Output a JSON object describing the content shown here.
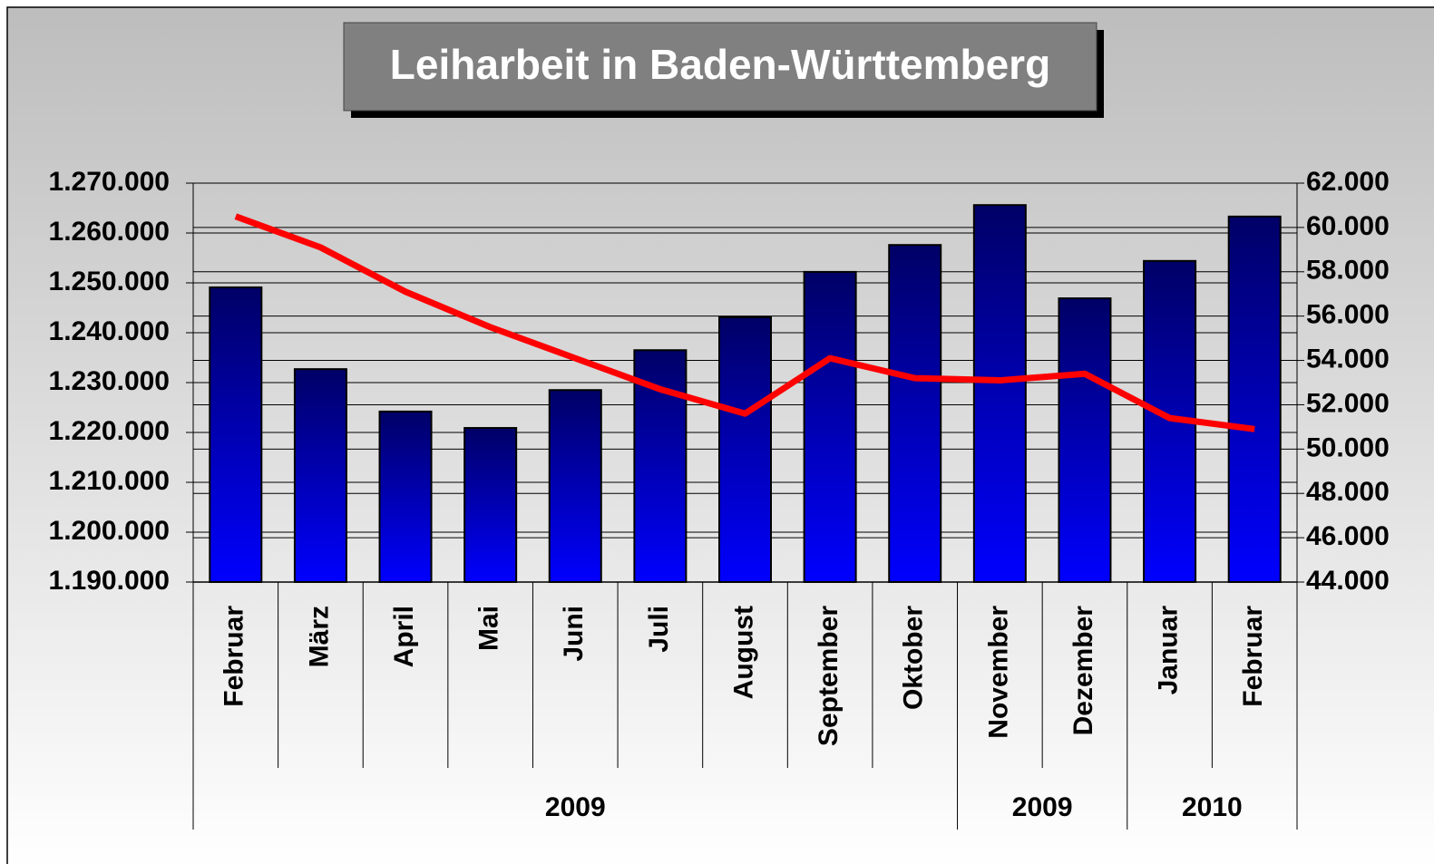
{
  "chart_data": {
    "type": "bar",
    "title": "Leiharbeit in Baden-Württemberg",
    "categories": [
      "Februar",
      "März",
      "April",
      "Mai",
      "Juni",
      "Juli",
      "August",
      "September",
      "Oktober",
      "November",
      "Dezember",
      "Januar",
      "Februar"
    ],
    "x_groups": [
      {
        "label": "2009",
        "count": 9
      },
      {
        "label": "2009",
        "count": 2
      },
      {
        "label": "2010",
        "count": 2
      }
    ],
    "series": [
      {
        "type": "bar",
        "color": "#0000ff",
        "values": [
          1249100,
          1232700,
          1224200,
          1220900,
          1228500,
          1236500,
          1243100,
          1252200,
          1257600,
          1265600,
          1246900,
          1254400,
          1263300
        ]
      },
      {
        "type": "line",
        "axis": "y2",
        "color": "#ff0000",
        "values": [
          60500,
          59100,
          57100,
          55500,
          54100,
          52700,
          51600,
          54100,
          53200,
          53100,
          53400,
          51400,
          50900
        ]
      }
    ],
    "ylim": [
      1190000,
      1270000
    ],
    "yticks": [
      {
        "value": 1190000,
        "label": "1.190.000"
      },
      {
        "value": 1200000,
        "label": "1.200.000"
      },
      {
        "value": 1210000,
        "label": "1.210.000"
      },
      {
        "value": 1220000,
        "label": "1.220.000"
      },
      {
        "value": 1230000,
        "label": "1.230.000"
      },
      {
        "value": 1240000,
        "label": "1.240.000"
      },
      {
        "value": 1250000,
        "label": "1.250.000"
      },
      {
        "value": 1260000,
        "label": "1.260.000"
      },
      {
        "value": 1270000,
        "label": "1.270.000"
      }
    ],
    "y2lim": [
      44000,
      62000
    ],
    "y2ticks": [
      {
        "value": 44000,
        "label": "44.000"
      },
      {
        "value": 46000,
        "label": "46.000"
      },
      {
        "value": 48000,
        "label": "48.000"
      },
      {
        "value": 50000,
        "label": "50.000"
      },
      {
        "value": 52000,
        "label": "52.000"
      },
      {
        "value": 54000,
        "label": "54.000"
      },
      {
        "value": 56000,
        "label": "56.000"
      },
      {
        "value": 58000,
        "label": "58.000"
      },
      {
        "value": 60000,
        "label": "60.000"
      },
      {
        "value": 62000,
        "label": "62.000"
      }
    ],
    "grid": true
  }
}
